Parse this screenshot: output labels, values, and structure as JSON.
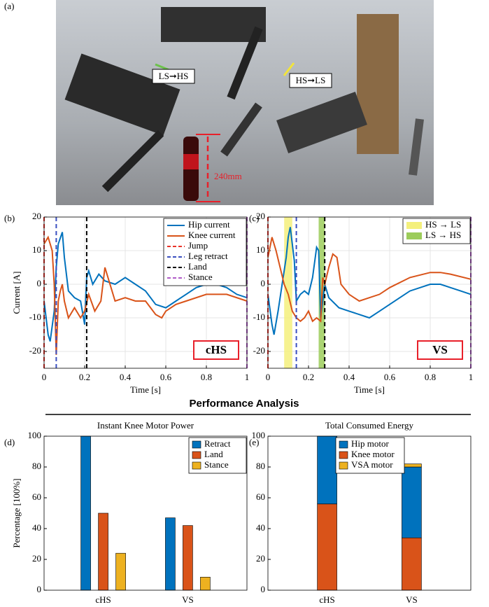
{
  "photo": {
    "panel_label": "(a)",
    "annotations": [
      "LS➞HS",
      "HS➞LS",
      "240mm"
    ]
  },
  "section_title": "Performance Analysis",
  "chart_data": [
    {
      "type": "line",
      "panel_label": "(b)",
      "ylabel": "Current [A]",
      "xlabel": "Time [s]",
      "tag": "cHS",
      "xlim": [
        0,
        1
      ],
      "ylim": [
        -25,
        20
      ],
      "xticks": [
        0,
        0.2,
        0.4,
        0.6,
        0.8,
        1
      ],
      "yticks": [
        -20,
        -10,
        0,
        10,
        20
      ],
      "grid": true,
      "legend": "upper right",
      "series": [
        {
          "name": "Hip current",
          "color": "#0072bd",
          "x": [
            0,
            0.02,
            0.03,
            0.05,
            0.06,
            0.07,
            0.09,
            0.1,
            0.12,
            0.15,
            0.18,
            0.2,
            0.21,
            0.22,
            0.24,
            0.27,
            0.3,
            0.35,
            0.4,
            0.45,
            0.5,
            0.55,
            0.6,
            0.65,
            0.7,
            0.75,
            0.8,
            0.85,
            0.9,
            0.95,
            1
          ],
          "values": [
            -5,
            -15,
            -17,
            -8,
            5,
            12,
            15.5,
            8,
            -2,
            -4,
            -5,
            -12,
            2,
            4,
            0,
            3,
            1,
            0,
            2,
            0,
            -2,
            -6,
            -7,
            -5,
            -3,
            -1,
            0,
            0,
            -1,
            -3,
            -4
          ]
        },
        {
          "name": "Knee current",
          "color": "#d95319",
          "x": [
            0,
            0.02,
            0.04,
            0.05,
            0.06,
            0.07,
            0.08,
            0.09,
            0.1,
            0.12,
            0.15,
            0.18,
            0.2,
            0.22,
            0.25,
            0.28,
            0.3,
            0.32,
            0.35,
            0.4,
            0.45,
            0.5,
            0.55,
            0.58,
            0.6,
            0.65,
            0.7,
            0.8,
            0.9,
            1
          ],
          "values": [
            12,
            14,
            10,
            0,
            -21,
            -5,
            -2,
            0,
            -5,
            -10,
            -7,
            -10,
            -8,
            -3,
            -8,
            -5,
            5,
            1,
            -5,
            -4,
            -5,
            -5,
            -9,
            -10,
            -8,
            -6,
            -5,
            -3,
            -3,
            -5
          ]
        }
      ],
      "vlines": [
        {
          "name": "Jump",
          "color": "#e8332a",
          "x": 0
        },
        {
          "name": "Leg retract",
          "color": "#3a4fc0",
          "x": 0.06
        },
        {
          "name": "Land",
          "color": "#000000",
          "x": 0.21
        },
        {
          "name": "Stance",
          "color": "#b05cc8",
          "x": 1
        }
      ]
    },
    {
      "type": "line",
      "panel_label": "(c)",
      "xlabel": "Time [s]",
      "tag": "VS",
      "xlim": [
        0,
        1
      ],
      "ylim": [
        -25,
        20
      ],
      "xticks": [
        0,
        0.2,
        0.4,
        0.6,
        0.8,
        1
      ],
      "yticks": [
        -20,
        -10,
        0,
        10,
        20
      ],
      "grid": true,
      "legend": "upper right",
      "bands": [
        {
          "name": "HS → LS",
          "color": "#f4f07c",
          "x": [
            0.08,
            0.12
          ]
        },
        {
          "name": "LS → HS",
          "color": "#9ccc5a",
          "x": [
            0.25,
            0.28
          ]
        }
      ],
      "series": [
        {
          "color": "#0072bd",
          "x": [
            0,
            0.02,
            0.03,
            0.05,
            0.07,
            0.09,
            0.1,
            0.11,
            0.13,
            0.14,
            0.16,
            0.18,
            0.2,
            0.22,
            0.24,
            0.25,
            0.26,
            0.27,
            0.28,
            0.3,
            0.35,
            0.4,
            0.45,
            0.5,
            0.55,
            0.6,
            0.65,
            0.7,
            0.75,
            0.8,
            0.85,
            0.9,
            0.95,
            1
          ],
          "values": [
            -3,
            -12,
            -15,
            -8,
            0,
            8,
            14,
            17,
            7,
            -5,
            -3,
            -2,
            -3,
            2,
            11,
            10,
            -10,
            -5,
            0,
            -4,
            -7,
            -8,
            -9,
            -10,
            -8,
            -6,
            -4,
            -2,
            -1,
            0,
            0,
            -1,
            -2,
            -3
          ]
        },
        {
          "color": "#d95319",
          "x": [
            0,
            0.02,
            0.04,
            0.06,
            0.08,
            0.1,
            0.12,
            0.14,
            0.16,
            0.18,
            0.2,
            0.22,
            0.24,
            0.26,
            0.27,
            0.28,
            0.3,
            0.32,
            0.34,
            0.36,
            0.4,
            0.45,
            0.5,
            0.55,
            0.6,
            0.7,
            0.8,
            0.85,
            0.9,
            1
          ],
          "values": [
            8,
            14,
            10,
            5,
            0,
            -3,
            -8,
            -10,
            -11,
            -10,
            -8,
            -11,
            -10,
            -11,
            2,
            0,
            5,
            9,
            8,
            0,
            -3,
            -5,
            -4,
            -3,
            -1,
            2,
            3.5,
            3.5,
            3,
            1.5
          ]
        }
      ],
      "vlines": [
        {
          "color": "#e8332a",
          "x": 0
        },
        {
          "color": "#3a4fc0",
          "x": 0.14
        },
        {
          "color": "#000000",
          "x": 0.28
        },
        {
          "color": "#b05cc8",
          "x": 1
        }
      ]
    },
    {
      "type": "bar",
      "panel_label": "(d)",
      "title": "Instant Knee Motor Power",
      "ylabel": "Percentage  [100%]",
      "categories": [
        "cHS",
        "VS"
      ],
      "ylim": [
        0,
        100
      ],
      "yticks": [
        0,
        20,
        40,
        60,
        80,
        100
      ],
      "legend": "upper right",
      "series": [
        {
          "name": "Retract",
          "color": "#0072bd",
          "values": [
            100,
            47
          ]
        },
        {
          "name": "Land",
          "color": "#d95319",
          "values": [
            50,
            42
          ]
        },
        {
          "name": "Stance",
          "color": "#edb120",
          "values": [
            24,
            8.5
          ]
        }
      ]
    },
    {
      "type": "stacked_bar",
      "panel_label": "(e)",
      "title": "Total Consumed Energy",
      "categories": [
        "cHS",
        "VS"
      ],
      "ylim": [
        0,
        100
      ],
      "yticks": [
        0,
        20,
        40,
        60,
        80,
        100
      ],
      "legend": "upper left",
      "stack_order": [
        1,
        0,
        2
      ],
      "series": [
        {
          "name": "Hip motor",
          "color": "#0072bd",
          "values": [
            44,
            46
          ]
        },
        {
          "name": "Knee motor",
          "color": "#d95319",
          "values": [
            56,
            34
          ]
        },
        {
          "name": "VSA motor",
          "color": "#edb120",
          "values": [
            0,
            2
          ]
        }
      ]
    }
  ]
}
